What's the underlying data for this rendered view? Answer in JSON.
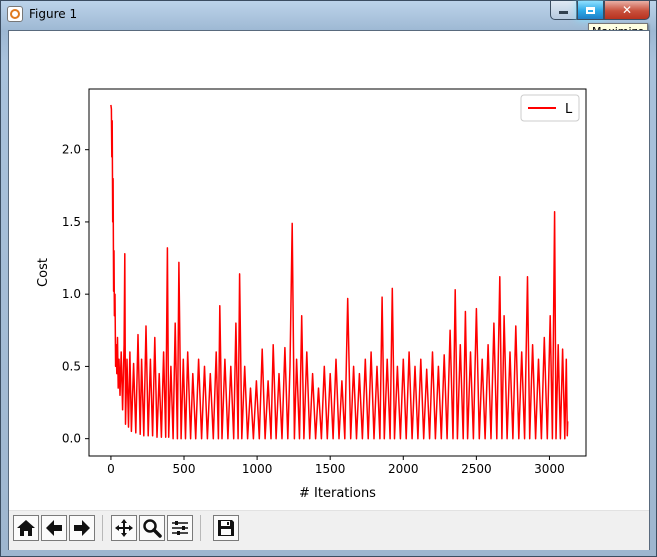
{
  "window": {
    "title": "Figure 1",
    "tooltip": "Maximize"
  },
  "toolbar": {
    "buttons": [
      "home-icon",
      "back-arrow-icon",
      "forward-arrow-icon",
      "pan-icon",
      "zoom-icon",
      "subplots-config-icon",
      "save-icon"
    ]
  },
  "colors": {
    "series": "#ff0000",
    "toolbar_bg": "#f0f0f0"
  },
  "chart_data": {
    "type": "line",
    "title": "",
    "xlabel": "# Iterations",
    "ylabel": "Cost",
    "xlim": [
      -150,
      3250
    ],
    "ylim": [
      -0.12,
      2.42
    ],
    "xticks": [
      0,
      500,
      1000,
      1500,
      2000,
      2500,
      3000
    ],
    "yticks": [
      0.0,
      0.5,
      1.0,
      1.5,
      2.0
    ],
    "ytick_labels": [
      "0.0",
      "0.5",
      "1.0",
      "1.5",
      "2.0"
    ],
    "legend_position": "upper right",
    "grid": false,
    "series": [
      {
        "name": "L",
        "color": "#ff0000",
        "points": [
          [
            0,
            2.31
          ],
          [
            3,
            2.28
          ],
          [
            6,
            1.95
          ],
          [
            9,
            2.2
          ],
          [
            12,
            1.5
          ],
          [
            15,
            1.8
          ],
          [
            18,
            1.02
          ],
          [
            21,
            1.3
          ],
          [
            24,
            0.85
          ],
          [
            28,
            1.0
          ],
          [
            32,
            0.5
          ],
          [
            36,
            0.65
          ],
          [
            40,
            0.45
          ],
          [
            45,
            0.7
          ],
          [
            50,
            0.35
          ],
          [
            55,
            0.55
          ],
          [
            62,
            0.3
          ],
          [
            70,
            0.6
          ],
          [
            80,
            0.2
          ],
          [
            90,
            0.65
          ],
          [
            95,
            1.28
          ],
          [
            100,
            0.1
          ],
          [
            110,
            0.55
          ],
          [
            120,
            0.08
          ],
          [
            130,
            0.6
          ],
          [
            140,
            0.05
          ],
          [
            155,
            0.52
          ],
          [
            170,
            0.04
          ],
          [
            185,
            0.72
          ],
          [
            200,
            0.03
          ],
          [
            210,
            0.55
          ],
          [
            225,
            0.02
          ],
          [
            240,
            0.78
          ],
          [
            255,
            0.02
          ],
          [
            270,
            0.55
          ],
          [
            285,
            0.02
          ],
          [
            300,
            0.7
          ],
          [
            315,
            0.01
          ],
          [
            330,
            0.45
          ],
          [
            345,
            0.01
          ],
          [
            360,
            0.6
          ],
          [
            375,
            0.01
          ],
          [
            386,
            1.32
          ],
          [
            395,
            0.01
          ],
          [
            410,
            0.5
          ],
          [
            425,
            0.0
          ],
          [
            440,
            0.8
          ],
          [
            455,
            0.0
          ],
          [
            465,
            1.22
          ],
          [
            480,
            0.0
          ],
          [
            495,
            0.55
          ],
          [
            510,
            0.0
          ],
          [
            525,
            0.6
          ],
          [
            545,
            0.0
          ],
          [
            560,
            0.45
          ],
          [
            580,
            0.0
          ],
          [
            600,
            0.55
          ],
          [
            620,
            0.0
          ],
          [
            640,
            0.5
          ],
          [
            660,
            0.0
          ],
          [
            680,
            0.45
          ],
          [
            700,
            0.0
          ],
          [
            720,
            0.6
          ],
          [
            735,
            0.0
          ],
          [
            745,
            0.92
          ],
          [
            760,
            0.0
          ],
          [
            780,
            0.55
          ],
          [
            800,
            0.0
          ],
          [
            820,
            0.5
          ],
          [
            840,
            0.0
          ],
          [
            855,
            0.8
          ],
          [
            870,
            0.0
          ],
          [
            880,
            1.14
          ],
          [
            895,
            0.0
          ],
          [
            915,
            0.5
          ],
          [
            935,
            0.0
          ],
          [
            955,
            0.35
          ],
          [
            975,
            0.0
          ],
          [
            995,
            0.4
          ],
          [
            1015,
            0.0
          ],
          [
            1035,
            0.62
          ],
          [
            1055,
            0.0
          ],
          [
            1075,
            0.4
          ],
          [
            1095,
            0.0
          ],
          [
            1110,
            0.65
          ],
          [
            1130,
            0.0
          ],
          [
            1150,
            0.45
          ],
          [
            1170,
            0.0
          ],
          [
            1190,
            0.63
          ],
          [
            1210,
            0.0
          ],
          [
            1225,
            0.5
          ],
          [
            1240,
            1.49
          ],
          [
            1255,
            0.0
          ],
          [
            1270,
            0.55
          ],
          [
            1290,
            0.0
          ],
          [
            1305,
            0.85
          ],
          [
            1320,
            0.0
          ],
          [
            1340,
            0.6
          ],
          [
            1360,
            0.0
          ],
          [
            1380,
            0.45
          ],
          [
            1400,
            0.0
          ],
          [
            1420,
            0.35
          ],
          [
            1440,
            0.0
          ],
          [
            1460,
            0.5
          ],
          [
            1480,
            0.0
          ],
          [
            1500,
            0.45
          ],
          [
            1520,
            0.0
          ],
          [
            1540,
            0.55
          ],
          [
            1560,
            0.0
          ],
          [
            1580,
            0.4
          ],
          [
            1600,
            0.0
          ],
          [
            1620,
            0.97
          ],
          [
            1640,
            0.0
          ],
          [
            1660,
            0.5
          ],
          [
            1680,
            0.0
          ],
          [
            1700,
            0.45
          ],
          [
            1720,
            0.0
          ],
          [
            1740,
            0.55
          ],
          [
            1760,
            0.0
          ],
          [
            1780,
            0.6
          ],
          [
            1800,
            0.0
          ],
          [
            1820,
            0.5
          ],
          [
            1840,
            0.0
          ],
          [
            1855,
            0.98
          ],
          [
            1870,
            0.0
          ],
          [
            1890,
            0.55
          ],
          [
            1910,
            0.0
          ],
          [
            1925,
            1.04
          ],
          [
            1940,
            0.0
          ],
          [
            1960,
            0.5
          ],
          [
            1980,
            0.0
          ],
          [
            2000,
            0.55
          ],
          [
            2020,
            0.0
          ],
          [
            2040,
            0.6
          ],
          [
            2060,
            0.0
          ],
          [
            2080,
            0.5
          ],
          [
            2100,
            0.0
          ],
          [
            2120,
            0.55
          ],
          [
            2140,
            0.0
          ],
          [
            2160,
            0.48
          ],
          [
            2180,
            0.0
          ],
          [
            2200,
            0.6
          ],
          [
            2220,
            0.0
          ],
          [
            2240,
            0.5
          ],
          [
            2260,
            0.0
          ],
          [
            2280,
            0.58
          ],
          [
            2300,
            0.0
          ],
          [
            2320,
            0.75
          ],
          [
            2340,
            0.0
          ],
          [
            2355,
            1.03
          ],
          [
            2370,
            0.0
          ],
          [
            2390,
            0.65
          ],
          [
            2410,
            0.0
          ],
          [
            2425,
            0.88
          ],
          [
            2440,
            0.0
          ],
          [
            2460,
            0.6
          ],
          [
            2480,
            0.0
          ],
          [
            2500,
            0.9
          ],
          [
            2520,
            0.0
          ],
          [
            2540,
            0.55
          ],
          [
            2560,
            0.0
          ],
          [
            2580,
            0.65
          ],
          [
            2600,
            0.0
          ],
          [
            2620,
            0.8
          ],
          [
            2640,
            0.0
          ],
          [
            2660,
            1.12
          ],
          [
            2675,
            0.0
          ],
          [
            2690,
            0.85
          ],
          [
            2710,
            0.0
          ],
          [
            2730,
            0.6
          ],
          [
            2750,
            0.0
          ],
          [
            2770,
            0.78
          ],
          [
            2790,
            0.0
          ],
          [
            2810,
            0.6
          ],
          [
            2830,
            0.0
          ],
          [
            2850,
            1.12
          ],
          [
            2865,
            0.0
          ],
          [
            2885,
            0.65
          ],
          [
            2905,
            0.0
          ],
          [
            2925,
            0.55
          ],
          [
            2945,
            0.0
          ],
          [
            2965,
            0.7
          ],
          [
            2985,
            0.0
          ],
          [
            3005,
            0.85
          ],
          [
            3020,
            0.0
          ],
          [
            3035,
            1.57
          ],
          [
            3045,
            0.0
          ],
          [
            3060,
            0.65
          ],
          [
            3075,
            0.0
          ],
          [
            3090,
            0.62
          ],
          [
            3105,
            0.0
          ],
          [
            3115,
            0.55
          ],
          [
            3122,
            0.02
          ],
          [
            3125,
            0.12
          ]
        ]
      }
    ]
  }
}
